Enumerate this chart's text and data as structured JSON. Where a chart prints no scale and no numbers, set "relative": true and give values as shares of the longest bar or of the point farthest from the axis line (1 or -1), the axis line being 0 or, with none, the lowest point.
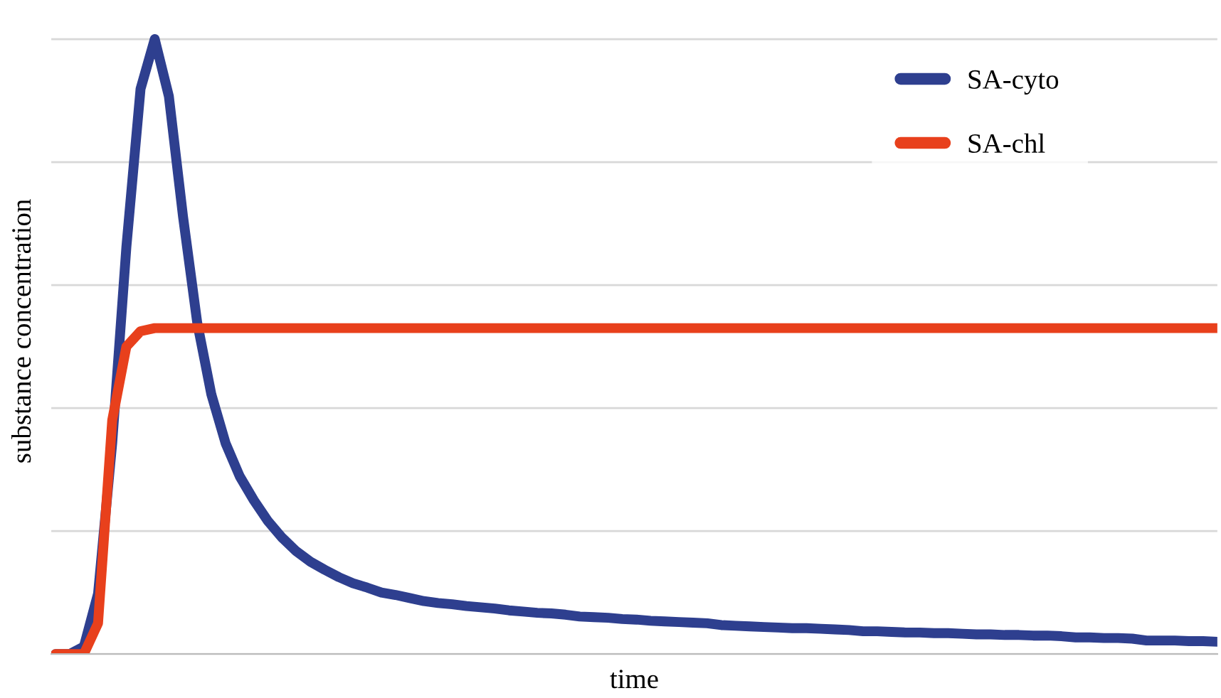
{
  "chart_data": {
    "type": "line",
    "relative": true,
    "xlabel": "time",
    "ylabel": "substance concentration",
    "grid": "y",
    "legend": "top right",
    "marker": "none",
    "line_style": "solid",
    "categories": [
      null,
      null,
      null,
      null,
      null,
      null,
      null,
      null,
      null,
      null,
      null,
      null,
      null,
      null,
      null,
      null,
      null,
      null,
      null,
      null,
      null,
      null,
      null,
      null,
      null,
      null,
      null,
      null,
      null,
      null,
      null,
      null,
      null,
      null,
      null,
      null,
      null,
      null,
      null,
      null,
      null,
      null,
      null,
      null,
      null,
      null,
      null,
      null,
      null,
      null,
      null,
      null,
      null,
      null,
      null,
      null,
      null,
      null,
      null,
      null,
      null,
      null,
      null,
      null,
      null,
      null,
      null,
      null,
      null,
      null,
      null,
      null,
      null,
      null,
      null,
      null,
      null,
      null,
      null,
      null,
      null,
      null,
      null
    ],
    "series": [
      {
        "name": "SA-cyto",
        "color": "#2e3f8f",
        "values": [
          0,
          0,
          0.012,
          0.098,
          0.343,
          0.662,
          0.919,
          1,
          0.907,
          0.711,
          0.539,
          0.422,
          0.343,
          0.289,
          0.25,
          0.216,
          0.189,
          0.167,
          0.15,
          0.137,
          0.125,
          0.115,
          0.108,
          0.1,
          0.096,
          0.091,
          0.086,
          0.083,
          0.081,
          0.078,
          0.076,
          0.074,
          0.071,
          0.069,
          0.067,
          0.066,
          0.064,
          0.061,
          0.06,
          0.059,
          0.057,
          0.056,
          0.054,
          0.053,
          0.052,
          0.051,
          0.05,
          0.047,
          0.046,
          0.045,
          0.044,
          0.043,
          0.042,
          0.042,
          0.041,
          0.04,
          0.039,
          0.037,
          0.037,
          0.036,
          0.035,
          0.035,
          0.034,
          0.034,
          0.033,
          0.032,
          0.032,
          0.031,
          0.031,
          0.03,
          0.03,
          0.029,
          0.027,
          0.027,
          0.026,
          0.026,
          0.025,
          0.022,
          0.022,
          0.022,
          0.021,
          0.021,
          0.02
        ]
      },
      {
        "name": "SA-chl",
        "color": "#e8401c",
        "values": [
          0,
          0,
          0,
          0.05,
          0.38,
          0.5,
          0.525,
          0.53,
          0.53,
          0.53,
          0.53,
          0.53,
          0.53,
          0.53,
          0.53,
          0.53,
          0.53,
          0.53,
          0.53,
          0.53,
          0.53,
          0.53,
          0.53,
          0.53,
          0.53,
          0.53,
          0.53,
          0.53,
          0.53,
          0.53,
          0.53,
          0.53,
          0.53,
          0.53,
          0.53,
          0.53,
          0.53,
          0.53,
          0.53,
          0.53,
          0.53,
          0.53,
          0.53,
          0.53,
          0.53,
          0.53,
          0.53,
          0.53,
          0.53,
          0.53,
          0.53,
          0.53,
          0.53,
          0.53,
          0.53,
          0.53,
          0.53,
          0.53,
          0.53,
          0.53,
          0.53,
          0.53,
          0.53,
          0.53,
          0.53,
          0.53,
          0.53,
          0.53,
          0.53,
          0.53,
          0.53,
          0.53,
          0.53,
          0.53,
          0.53,
          0.53,
          0.53,
          0.53,
          0.53,
          0.53,
          0.53,
          0.53,
          0.53
        ]
      }
    ]
  }
}
